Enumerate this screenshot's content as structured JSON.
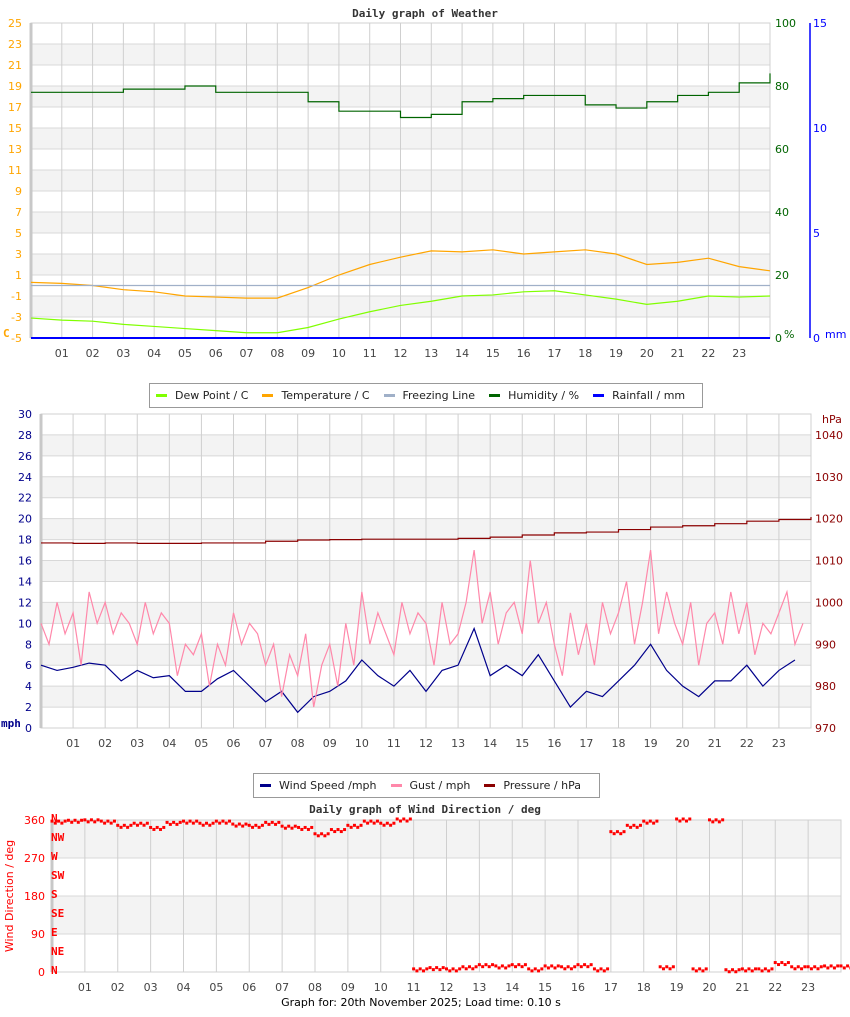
{
  "chart_data": [
    {
      "type": "line",
      "title": "Daily graph of Weather",
      "legend_position": "bottom",
      "grid": true,
      "x_tick_labels": [
        "01",
        "02",
        "03",
        "04",
        "05",
        "06",
        "07",
        "08",
        "09",
        "10",
        "11",
        "12",
        "13",
        "14",
        "15",
        "16",
        "17",
        "18",
        "19",
        "20",
        "21",
        "22",
        "23"
      ],
      "y_left": {
        "unit": "C",
        "range": [
          -5,
          25
        ],
        "ticks": [
          25,
          23,
          21,
          19,
          17,
          15,
          13,
          11,
          9,
          7,
          5,
          3,
          1,
          -1,
          -3,
          -5
        ],
        "color": "#ffa500"
      },
      "y_right": {
        "unit": "%",
        "range": [
          0,
          100
        ],
        "ticks": [
          100,
          80,
          60,
          40,
          20,
          0
        ],
        "color": "#006400"
      },
      "y_right2": {
        "unit": "mm",
        "range": [
          0,
          15
        ],
        "ticks": [
          15,
          10,
          5,
          0
        ],
        "color": "#0000ff"
      },
      "series": [
        {
          "name": "Dew Point / C",
          "color": "#80ff00",
          "axis": "left",
          "style": "line",
          "sample_interval_h": 1,
          "values": [
            -3.1,
            -3.3,
            -3.4,
            -3.7,
            -3.9,
            -4.1,
            -4.3,
            -4.5,
            -4.5,
            -4.0,
            -3.2,
            -2.5,
            -1.9,
            -1.5,
            -1.0,
            -0.9,
            -0.6,
            -0.5,
            -0.9,
            -1.3,
            -1.8,
            -1.5,
            -1.0,
            -1.1,
            -1.0
          ]
        },
        {
          "name": "Temperature / C",
          "color": "#ffa500",
          "axis": "left",
          "style": "line",
          "sample_interval_h": 1,
          "values": [
            0.3,
            0.2,
            0.0,
            -0.4,
            -0.6,
            -1.0,
            -1.1,
            -1.2,
            -1.2,
            -0.2,
            1.0,
            2.0,
            2.7,
            3.3,
            3.2,
            3.4,
            3.0,
            3.2,
            3.4,
            3.0,
            2.0,
            2.2,
            2.6,
            1.8,
            1.4
          ]
        },
        {
          "name": "Freezing Line",
          "color": "#a0b0c8",
          "axis": "left",
          "style": "line",
          "sample_interval_h": 24,
          "values": [
            0,
            0
          ]
        },
        {
          "name": "Humidity / %",
          "color": "#006400",
          "axis": "right",
          "style": "step",
          "sample_interval_h": 1,
          "values": [
            78,
            78,
            78,
            79,
            79,
            80,
            78,
            78,
            78,
            75,
            72,
            72,
            70,
            71,
            75,
            76,
            77,
            77,
            74,
            73,
            75,
            77,
            78,
            81,
            84
          ]
        },
        {
          "name": "Rainfall / mm",
          "color": "#0000ff",
          "axis": "right2",
          "style": "line",
          "sample_interval_h": 24,
          "values": [
            0,
            0
          ]
        }
      ]
    },
    {
      "type": "line",
      "title": "",
      "legend_position": "bottom",
      "grid": true,
      "x_tick_labels": [
        "01",
        "02",
        "03",
        "04",
        "05",
        "06",
        "07",
        "08",
        "09",
        "10",
        "11",
        "12",
        "13",
        "14",
        "15",
        "16",
        "17",
        "18",
        "19",
        "20",
        "21",
        "22",
        "23"
      ],
      "y_left": {
        "unit": "mph",
        "range": [
          0,
          30
        ],
        "ticks": [
          30,
          28,
          26,
          24,
          22,
          20,
          18,
          16,
          14,
          12,
          10,
          8,
          6,
          4,
          2,
          0
        ],
        "color": "#00008b"
      },
      "y_right": {
        "unit": "hPa",
        "range": [
          970,
          1045
        ],
        "ticks": [
          1040,
          1030,
          1020,
          1010,
          1000,
          990,
          980,
          970
        ],
        "color": "#8b0000"
      },
      "series": [
        {
          "name": "Wind Speed /mph",
          "color": "#00008b",
          "axis": "left",
          "style": "line",
          "sample_interval_h": 0.5,
          "values": [
            6,
            5.5,
            5.8,
            6.2,
            6,
            4.5,
            5.5,
            4.8,
            5,
            3.5,
            3.5,
            4.7,
            5.5,
            4,
            2.5,
            3.5,
            1.5,
            3,
            3.5,
            4.5,
            6.5,
            5,
            4,
            5.5,
            3.5,
            5.5,
            6,
            9.5,
            5,
            6,
            5,
            7,
            4.5,
            2,
            3.5,
            3,
            4.5,
            6,
            8,
            5.5,
            4,
            3,
            4.5,
            4.5,
            6,
            4,
            5.5,
            6.5
          ]
        },
        {
          "name": "Gust / mph",
          "color": "#ff88aa",
          "axis": "left",
          "style": "line",
          "sample_interval_h": 0.25,
          "values": [
            10,
            8,
            12,
            9,
            11,
            6,
            13,
            10,
            12,
            9,
            11,
            10,
            8,
            12,
            9,
            11,
            10,
            5,
            8,
            7,
            9,
            4,
            8,
            6,
            11,
            8,
            10,
            9,
            6,
            8,
            3,
            7,
            5,
            9,
            2,
            6,
            8,
            4,
            10,
            6,
            13,
            8,
            11,
            9,
            7,
            12,
            9,
            11,
            10,
            6,
            12,
            8,
            9,
            12,
            17,
            10,
            13,
            8,
            11,
            12,
            9,
            16,
            10,
            12,
            8,
            5,
            11,
            7,
            10,
            6,
            12,
            9,
            11,
            14,
            8,
            12,
            17,
            9,
            13,
            10,
            8,
            12,
            6,
            10,
            11,
            8,
            13,
            9,
            12,
            7,
            10,
            9,
            11,
            13,
            8,
            10
          ]
        },
        {
          "name": "Pressure / hPa",
          "color": "#8b0000",
          "axis": "right",
          "style": "step",
          "sample_interval_h": 1,
          "values": [
            1014.2,
            1014.1,
            1014.2,
            1014.1,
            1014.1,
            1014.2,
            1014.2,
            1014.6,
            1014.9,
            1015.0,
            1015.1,
            1015.1,
            1015.1,
            1015.3,
            1015.6,
            1016.1,
            1016.6,
            1016.8,
            1017.4,
            1018.0,
            1018.3,
            1018.8,
            1019.4,
            1019.8,
            1020.4
          ]
        }
      ]
    },
    {
      "type": "scatter",
      "title": "Daily graph of Wind Direction / deg",
      "ylabel": "Wind Direction / deg",
      "grid": true,
      "x_tick_labels": [
        "01",
        "02",
        "03",
        "04",
        "05",
        "06",
        "07",
        "08",
        "09",
        "10",
        "11",
        "12",
        "13",
        "14",
        "15",
        "16",
        "17",
        "18",
        "19",
        "20",
        "21",
        "22",
        "23"
      ],
      "y_left": {
        "unit": "deg",
        "range": [
          0,
          360
        ],
        "ticks": [
          360,
          270,
          180,
          90,
          0
        ],
        "color": "#ff0000"
      },
      "compass_labels": [
        "N",
        "NW",
        "W",
        "SW",
        "S",
        "SE",
        "E",
        "NE",
        "N"
      ],
      "series": [
        {
          "name": "Wind Direction / deg",
          "color": "#ff0000",
          "axis": "left",
          "style": "points",
          "sample_interval_h": 0.5,
          "values": [
            355,
            357,
            358,
            355,
            345,
            350,
            340,
            352,
            355,
            350,
            355,
            348,
            345,
            352,
            343,
            340,
            325,
            335,
            345,
            355,
            350,
            360,
            5,
            8,
            5,
            10,
            15,
            12,
            15,
            5,
            12,
            10,
            15,
            5,
            330,
            345,
            355,
            10,
            360,
            5,
            358,
            3,
            5,
            5,
            20,
            10,
            10,
            12,
            12
          ]
        }
      ]
    }
  ],
  "footer": {
    "text": "Graph for: 20th November 2025; Load time: 0.10 s"
  }
}
